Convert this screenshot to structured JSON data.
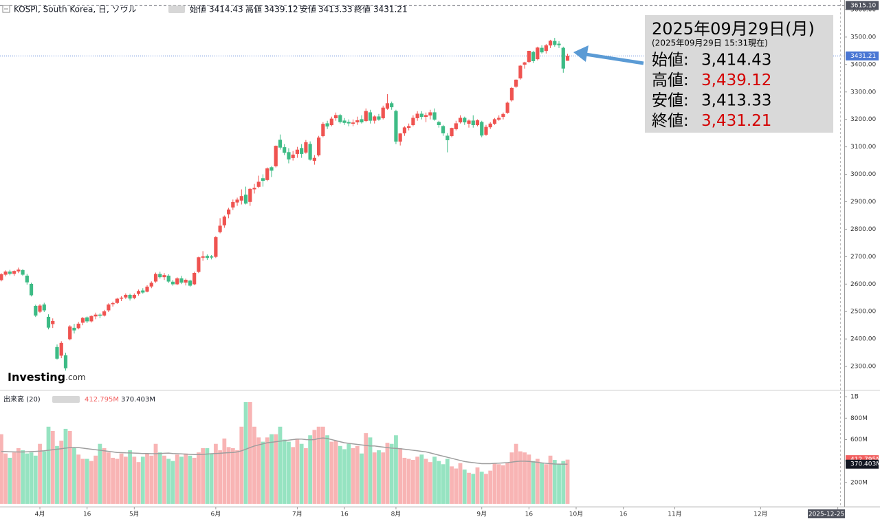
{
  "header": {
    "symbol": "KOSPI, South Korea, 日, ソウル",
    "open_label": "始値",
    "high_label": "高値",
    "low_label": "安値",
    "close_label": "終値"
  },
  "logo": {
    "main": "Investing",
    "suffix": ".com"
  },
  "annotation": {
    "date": "2025年09月29日(月)",
    "asof": "(2025年09月29日 15:31現在)",
    "rows": [
      {
        "label": "始値:",
        "value": "3,414.43",
        "color": "#000000"
      },
      {
        "label": "高値:",
        "value": "3,439.12",
        "color": "#d40000"
      },
      {
        "label": "安値:",
        "value": "3,413.33",
        "color": "#000000"
      },
      {
        "label": "終値:",
        "value": "3,431.21",
        "color": "#d40000"
      }
    ]
  },
  "chart_data": [
    {
      "type": "candlestick",
      "title": "KOSPI",
      "up_color": "#ef5350",
      "down_color": "#3dbb85",
      "xlim": [
        -0.3,
        196.5
      ],
      "xticks": [
        {
          "value": 9,
          "label": "4月"
        },
        {
          "value": 20,
          "label": "16"
        },
        {
          "value": 31,
          "label": "5月"
        },
        {
          "value": 50,
          "label": "6月"
        },
        {
          "value": 69,
          "label": "7月"
        },
        {
          "value": 80,
          "label": "16"
        },
        {
          "value": 92,
          "label": "8月"
        },
        {
          "value": 112,
          "label": "9月"
        },
        {
          "value": 123,
          "label": "16"
        },
        {
          "value": 134,
          "label": "10月"
        },
        {
          "value": 145,
          "label": "16"
        },
        {
          "value": 157,
          "label": "11月"
        },
        {
          "value": 177,
          "label": "12月"
        },
        {
          "value": 195,
          "label": "2025-12-25"
        }
      ],
      "ylim": [
        2215,
        3635
      ],
      "yticks": [
        {
          "value": 2300,
          "label": "2300.00"
        },
        {
          "value": 2400,
          "label": "2400.00"
        },
        {
          "value": 2500,
          "label": "2500.00"
        },
        {
          "value": 2600,
          "label": "2600.00"
        },
        {
          "value": 2700,
          "label": "2700.00"
        },
        {
          "value": 2800,
          "label": "2800.00"
        },
        {
          "value": 2900,
          "label": "2900.00"
        },
        {
          "value": 3000,
          "label": "3000.00"
        },
        {
          "value": 3100,
          "label": "3100.00"
        },
        {
          "value": 3200,
          "label": "3200.00"
        },
        {
          "value": 3300,
          "label": "3300.00"
        },
        {
          "value": 3400,
          "label": "3400.00"
        },
        {
          "value": 3500,
          "label": "3500.00"
        },
        {
          "value": 3600,
          "label": "3600.00"
        }
      ],
      "tags": [
        {
          "value": 3615.1,
          "label": "3615.10",
          "color": "#50535e"
        },
        {
          "value": 3431.21,
          "label": "3431.21",
          "color": "#4a77d4"
        }
      ],
      "x": [
        0,
        1,
        2,
        3,
        4,
        5,
        6,
        7,
        8,
        9,
        10,
        11,
        12,
        13,
        14,
        15,
        16,
        17,
        18,
        19,
        20,
        21,
        22,
        23,
        24,
        25,
        26,
        27,
        28,
        29,
        30,
        31,
        32,
        33,
        34,
        35,
        36,
        37,
        38,
        39,
        40,
        41,
        42,
        43,
        44,
        45,
        46,
        47,
        48,
        49,
        50,
        51,
        52,
        53,
        54,
        55,
        56,
        57,
        58,
        59,
        60,
        61,
        62,
        63,
        64,
        65,
        66,
        67,
        68,
        69,
        70,
        71,
        72,
        73,
        74,
        75,
        76,
        77,
        78,
        79,
        80,
        81,
        82,
        83,
        84,
        85,
        86,
        87,
        88,
        89,
        90,
        91,
        92,
        93,
        94,
        95,
        96,
        97,
        98,
        99,
        100,
        101,
        102,
        103,
        104,
        105,
        106,
        107,
        108,
        109,
        110,
        111,
        112,
        113,
        114,
        115,
        116,
        117,
        118,
        119,
        120,
        121,
        122,
        123,
        124,
        125,
        126,
        127,
        128,
        129,
        130,
        131,
        132
      ],
      "open": [
        2615,
        2635,
        2645,
        2638,
        2647,
        2650,
        2630,
        2600,
        2520,
        2500,
        2525,
        2480,
        2455,
        2370,
        2340,
        2340,
        2400,
        2440,
        2440,
        2460,
        2478,
        2465,
        2483,
        2488,
        2486,
        2505,
        2528,
        2532,
        2548,
        2552,
        2560,
        2550,
        2565,
        2576,
        2573,
        2592,
        2610,
        2636,
        2626,
        2630,
        2608,
        2600,
        2620,
        2606,
        2612,
        2600,
        2645,
        2697,
        2702,
        2700,
        2700,
        2790,
        2815,
        2855,
        2880,
        2898,
        2905,
        2925,
        2900,
        2946,
        2955,
        2985,
        2980,
        3025,
        3030,
        3125,
        3098,
        3080,
        3060,
        3075,
        3095,
        3080,
        3110,
        3050,
        3070,
        3140,
        3185,
        3180,
        3205,
        3215,
        3195,
        3190,
        3185,
        3190,
        3200,
        3195,
        3225,
        3196,
        3210,
        3205,
        3240,
        3258,
        3230,
        3120,
        3150,
        3170,
        3180,
        3205,
        3220,
        3210,
        3215,
        3225,
        3190,
        3175,
        3140,
        3140,
        3165,
        3190,
        3205,
        3185,
        3195,
        3180,
        3190,
        3145,
        3172,
        3185,
        3200,
        3210,
        3225,
        3270,
        3320,
        3350,
        3400,
        3410,
        3445,
        3420,
        3460,
        3450,
        3470,
        3485,
        3475,
        3460,
        3414.43
      ],
      "high": [
        2640,
        2650,
        2652,
        2650,
        2660,
        2655,
        2637,
        2605,
        2525,
        2527,
        2532,
        2490,
        2475,
        2380,
        2392,
        2350,
        2450,
        2455,
        2462,
        2480,
        2482,
        2486,
        2496,
        2494,
        2506,
        2530,
        2536,
        2550,
        2556,
        2566,
        2565,
        2566,
        2580,
        2585,
        2596,
        2610,
        2642,
        2645,
        2640,
        2636,
        2615,
        2625,
        2630,
        2620,
        2616,
        2645,
        2700,
        2720,
        2708,
        2706,
        2775,
        2840,
        2850,
        2878,
        2908,
        2915,
        2945,
        2955,
        2950,
        2965,
        2995,
        3000,
        3025,
        3030,
        3105,
        3145,
        3110,
        3095,
        3085,
        3100,
        3110,
        3125,
        3120,
        3070,
        3140,
        3190,
        3195,
        3210,
        3225,
        3220,
        3205,
        3200,
        3200,
        3210,
        3215,
        3240,
        3235,
        3215,
        3220,
        3250,
        3292,
        3265,
        3235,
        3150,
        3175,
        3185,
        3215,
        3230,
        3230,
        3225,
        3235,
        3240,
        3195,
        3180,
        3150,
        3170,
        3195,
        3215,
        3210,
        3200,
        3215,
        3200,
        3195,
        3180,
        3190,
        3205,
        3215,
        3225,
        3265,
        3318,
        3346,
        3398,
        3410,
        3450,
        3450,
        3465,
        3470,
        3475,
        3490,
        3497,
        3485,
        3465,
        3439.12
      ],
      "low": [
        2610,
        2628,
        2632,
        2630,
        2640,
        2630,
        2598,
        2555,
        2480,
        2495,
        2498,
        2435,
        2440,
        2325,
        2330,
        2285,
        2395,
        2420,
        2435,
        2450,
        2458,
        2460,
        2472,
        2476,
        2482,
        2498,
        2518,
        2528,
        2538,
        2546,
        2540,
        2545,
        2558,
        2565,
        2570,
        2585,
        2605,
        2620,
        2615,
        2604,
        2594,
        2596,
        2600,
        2595,
        2590,
        2596,
        2640,
        2685,
        2688,
        2690,
        2695,
        2785,
        2805,
        2840,
        2870,
        2885,
        2890,
        2890,
        2885,
        2930,
        2950,
        2955,
        2975,
        2990,
        3025,
        3090,
        3070,
        3040,
        3050,
        3060,
        3060,
        3075,
        3050,
        3035,
        3065,
        3135,
        3165,
        3175,
        3195,
        3185,
        3180,
        3175,
        3175,
        3180,
        3185,
        3190,
        3185,
        3185,
        3195,
        3200,
        3235,
        3235,
        3110,
        3105,
        3140,
        3160,
        3175,
        3195,
        3200,
        3190,
        3200,
        3195,
        3170,
        3140,
        3080,
        3135,
        3160,
        3185,
        3180,
        3170,
        3170,
        3175,
        3135,
        3140,
        3165,
        3180,
        3195,
        3200,
        3220,
        3265,
        3315,
        3345,
        3385,
        3405,
        3405,
        3415,
        3440,
        3440,
        3460,
        3465,
        3460,
        3370,
        3413.33
      ],
      "close": [
        2635,
        2645,
        2638,
        2647,
        2652,
        2635,
        2607,
        2560,
        2486,
        2521,
        2505,
        2442,
        2465,
        2329,
        2385,
        2294,
        2445,
        2432,
        2455,
        2476,
        2465,
        2483,
        2488,
        2486,
        2500,
        2525,
        2530,
        2546,
        2550,
        2560,
        2548,
        2560,
        2574,
        2570,
        2590,
        2604,
        2636,
        2626,
        2632,
        2610,
        2600,
        2620,
        2606,
        2615,
        2595,
        2640,
        2697,
        2700,
        2696,
        2698,
        2770,
        2812,
        2845,
        2871,
        2898,
        2907,
        2920,
        2894,
        2946,
        2950,
        2972,
        2977,
        3021,
        3014,
        3103,
        3098,
        3079,
        3055,
        3071,
        3089,
        3075,
        3116,
        3054,
        3059,
        3133,
        3183,
        3175,
        3202,
        3215,
        3191,
        3188,
        3186,
        3188,
        3196,
        3190,
        3230,
        3196,
        3210,
        3200,
        3242,
        3258,
        3245,
        3120,
        3148,
        3170,
        3175,
        3205,
        3220,
        3210,
        3215,
        3225,
        3200,
        3180,
        3150,
        3125,
        3168,
        3185,
        3205,
        3190,
        3195,
        3180,
        3196,
        3142,
        3172,
        3184,
        3200,
        3205,
        3219,
        3260,
        3314,
        3344,
        3395,
        3407,
        3449,
        3413,
        3461,
        3445,
        3469,
        3486,
        3472,
        3471,
        3386,
        3431.21
      ]
    },
    {
      "type": "bar",
      "title": "出来高 (20)",
      "up_color": "#f8b4b4",
      "down_color": "#96e3c1",
      "ma_color": "#9e9e9e",
      "ylim": [
        -26,
        1065
      ],
      "yticks": [
        {
          "value": 200,
          "label": "200M"
        },
        {
          "value": 400,
          "label": "400M"
        },
        {
          "value": 600,
          "label": "600M"
        },
        {
          "value": 800,
          "label": "800M"
        },
        {
          "value": 1000,
          "label": "1B"
        }
      ],
      "tags": [
        {
          "value": 412.795,
          "label": "412.795M",
          "color": "#f25f5f"
        },
        {
          "value": 370.403,
          "label": "370.403M",
          "color": "#131722"
        }
      ],
      "values": [
        650,
        470,
        430,
        480,
        520,
        500,
        470,
        480,
        450,
        560,
        490,
        720,
        680,
        540,
        590,
        700,
        680,
        520,
        460,
        420,
        420,
        400,
        450,
        560,
        520,
        480,
        430,
        420,
        470,
        440,
        500,
        440,
        390,
        440,
        470,
        450,
        560,
        480,
        450,
        420,
        400,
        460,
        440,
        470,
        450,
        430,
        480,
        520,
        520,
        470,
        560,
        500,
        610,
        530,
        520,
        500,
        720,
        950,
        950,
        720,
        620,
        580,
        620,
        650,
        650,
        720,
        600,
        580,
        530,
        610,
        560,
        520,
        640,
        690,
        720,
        720,
        640,
        580,
        590,
        540,
        510,
        560,
        520,
        540,
        470,
        660,
        620,
        480,
        500,
        480,
        570,
        560,
        640,
        520,
        430,
        420,
        410,
        440,
        460,
        420,
        390,
        440,
        400,
        370,
        420,
        350,
        330,
        380,
        320,
        290,
        280,
        340,
        300,
        280,
        310,
        380,
        370,
        360,
        380,
        480,
        560,
        490,
        480,
        460,
        400,
        420,
        380,
        370,
        450,
        410,
        370,
        400,
        412.795
      ],
      "ma": [
        490,
        488,
        486,
        485,
        484,
        484,
        486,
        488,
        490,
        492,
        495,
        500,
        505,
        510,
        515,
        520,
        525,
        528,
        525,
        520,
        515,
        510,
        505,
        500,
        495,
        490,
        485,
        480,
        478,
        476,
        475,
        474,
        472,
        470,
        470,
        468,
        468,
        470,
        472,
        474,
        470,
        468,
        466,
        464,
        462,
        460,
        460,
        462,
        465,
        468,
        470,
        472,
        475,
        478,
        480,
        485,
        495,
        510,
        525,
        540,
        550,
        560,
        570,
        575,
        580,
        585,
        590,
        595,
        600,
        605,
        605,
        600,
        598,
        600,
        610,
        615,
        610,
        600,
        590,
        580,
        570,
        565,
        560,
        555,
        550,
        545,
        540,
        540,
        535,
        530,
        525,
        520,
        518,
        515,
        510,
        505,
        500,
        495,
        490,
        485,
        475,
        465,
        455,
        445,
        435,
        425,
        415,
        405,
        395,
        390,
        385,
        380,
        375,
        375,
        375,
        378,
        380,
        382,
        385,
        390,
        395,
        398,
        398,
        396,
        392,
        388,
        382,
        378,
        375,
        372,
        371,
        370,
        370.403
      ]
    }
  ]
}
